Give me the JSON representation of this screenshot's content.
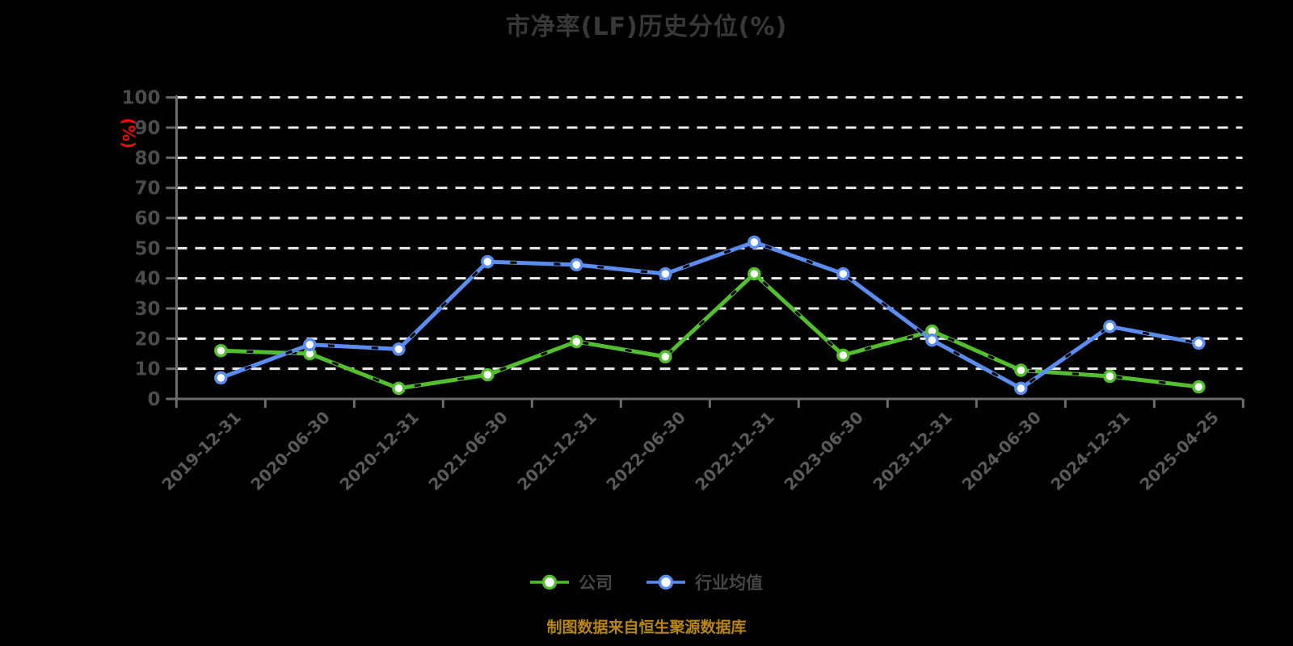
{
  "title": "市净率(LF)历史分位(%)",
  "footer": {
    "source_note": "制图数据来自恒生聚源数据库"
  },
  "y_axis": {
    "name": "(%)",
    "name_color": "#F40606"
  },
  "colors": {
    "background": "#000000",
    "title_text": "#383838",
    "axis_line": "#6C6C6C",
    "y_tick_label": "#4B4B4B",
    "x_tick_label": "#5A5A5A",
    "grid_line": "#EDEDED",
    "legend_text": "#464646",
    "source_note": "#B8860B",
    "company_series": "#53BE30",
    "industry_series": "#5B8DF0"
  },
  "chart_data": {
    "type": "line",
    "title": "市净率(LF)历史分位(%)",
    "ylabel": "(%)",
    "ylim": [
      0,
      100
    ],
    "ytick_step": 10,
    "grid": "horizontal white dashed lines",
    "legend_position": "bottom",
    "marker": "white-filled circle with colored ring",
    "categories": [
      "2019-12-31",
      "2020-06-30",
      "2020-12-31",
      "2021-06-30",
      "2021-12-31",
      "2022-06-30",
      "2022-12-31",
      "2023-06-30",
      "2023-12-31",
      "2024-06-30",
      "2024-12-31",
      "2025-04-25"
    ],
    "series": [
      {
        "name": "公司",
        "color": "#53BE30",
        "values": [
          16,
          15,
          3.5,
          8,
          19,
          14,
          41.5,
          14.5,
          22.5,
          9.5,
          7.5,
          4
        ]
      },
      {
        "name": "行业均值",
        "color": "#5B8DF0",
        "values": [
          7,
          18,
          16.5,
          45.5,
          44.5,
          41.5,
          52,
          41.5,
          19.5,
          3.5,
          24,
          18.5
        ]
      }
    ]
  }
}
